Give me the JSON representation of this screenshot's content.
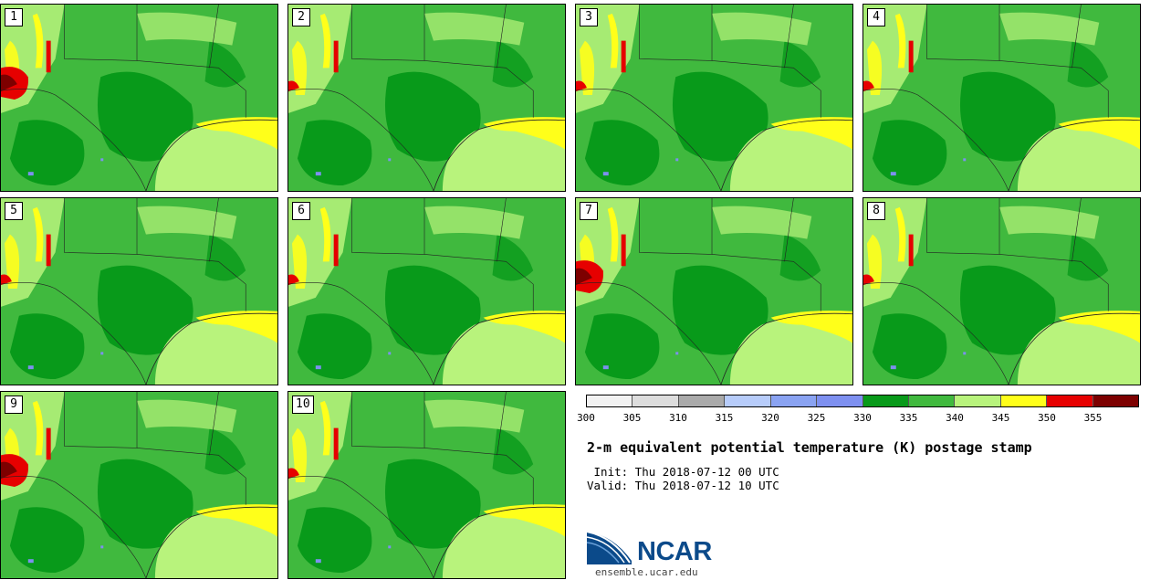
{
  "stamps": [
    "1",
    "2",
    "3",
    "4",
    "5",
    "6",
    "7",
    "8",
    "9",
    "10"
  ],
  "colorbar": {
    "colors": [
      "#f2f2f2",
      "#dddddd",
      "#aaaaaa",
      "#b7ccfa",
      "#8aa3f2",
      "#7e90f0",
      "#089a1a",
      "#40b93e",
      "#b8f37c",
      "#ffff1a",
      "#e60000",
      "#7d0000"
    ],
    "ticks": [
      "300",
      "305",
      "310",
      "315",
      "320",
      "325",
      "330",
      "335",
      "340",
      "345",
      "350",
      "355"
    ]
  },
  "title": "2-m equivalent potential temperature (K) postage stamp",
  "init": " Init: Thu 2018-07-12 00 UTC",
  "valid": "Valid: Thu 2018-07-12 10 UTC",
  "logo": {
    "name": "NCAR",
    "url": "ensemble.ucar.edu",
    "color": "#0b4a8a"
  }
}
